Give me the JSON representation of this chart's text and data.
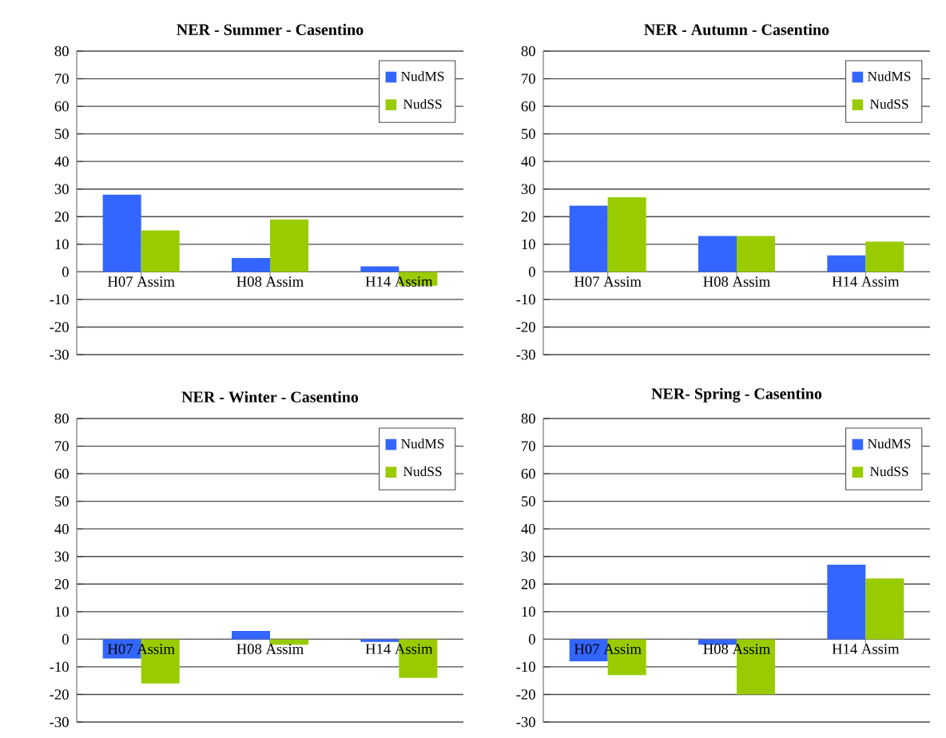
{
  "chart_data": [
    {
      "type": "bar",
      "title": "NER - Summer - Casentino",
      "categories": [
        "H07 Assim",
        "H08 Assim",
        "H14 Assim"
      ],
      "series": [
        {
          "name": "NudMS",
          "color": "#3366ff",
          "values": [
            28,
            5,
            2
          ]
        },
        {
          "name": "NudSS",
          "color": "#99cc00",
          "values": [
            15,
            19,
            -5
          ]
        }
      ],
      "ylim": [
        -30,
        80
      ],
      "yticks": [
        -30,
        -20,
        -10,
        0,
        10,
        20,
        30,
        40,
        50,
        60,
        70,
        80
      ],
      "grid": "y",
      "legend": "top right"
    },
    {
      "type": "bar",
      "title": "NER - Autumn - Casentino",
      "categories": [
        "H07 Assim",
        "H08 Assim",
        "H14 Assim"
      ],
      "series": [
        {
          "name": "NudMS",
          "color": "#3366ff",
          "values": [
            24,
            13,
            6
          ]
        },
        {
          "name": "NudSS",
          "color": "#99cc00",
          "values": [
            27,
            13,
            11
          ]
        }
      ],
      "ylim": [
        -30,
        80
      ],
      "yticks": [
        -30,
        -20,
        -10,
        0,
        10,
        20,
        30,
        40,
        50,
        60,
        70,
        80
      ],
      "grid": "y",
      "legend": "top right"
    },
    {
      "type": "bar",
      "title": "NER - Winter - Casentino",
      "categories": [
        "H07 Assim",
        "H08 Assim",
        "H14 Assim"
      ],
      "series": [
        {
          "name": "NudMS",
          "color": "#3366ff",
          "values": [
            -7,
            3,
            -1
          ]
        },
        {
          "name": "NudSS",
          "color": "#99cc00",
          "values": [
            -16,
            -2,
            -14
          ]
        }
      ],
      "ylim": [
        -30,
        80
      ],
      "yticks": [
        -30,
        -20,
        -10,
        0,
        10,
        20,
        30,
        40,
        50,
        60,
        70,
        80
      ],
      "grid": "y",
      "legend": "top right"
    },
    {
      "type": "bar",
      "title": "NER- Spring - Casentino",
      "categories": [
        "H07 Assim",
        "H08 Assim",
        "H14 Assim"
      ],
      "series": [
        {
          "name": "NudMS",
          "color": "#3366ff",
          "values": [
            -8,
            -2,
            27
          ]
        },
        {
          "name": "NudSS",
          "color": "#99cc00",
          "values": [
            -13,
            -20,
            22
          ]
        }
      ],
      "ylim": [
        -30,
        80
      ],
      "yticks": [
        -30,
        -20,
        -10,
        0,
        10,
        20,
        30,
        40,
        50,
        60,
        70,
        80
      ],
      "grid": "y",
      "legend": "top right"
    }
  ]
}
